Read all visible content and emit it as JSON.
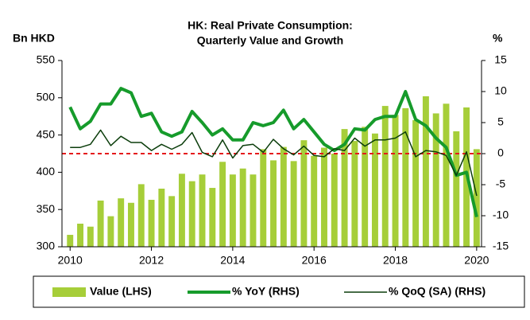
{
  "chart_data": {
    "type": "bar_line",
    "title": [
      "HK: Real Private Consumption:",
      "Quarterly Value and Growth"
    ],
    "ylabel": "Bn HKD",
    "y2label": "%",
    "x": [
      2010,
      2010.25,
      2010.5,
      2010.75,
      2011,
      2011.25,
      2011.5,
      2011.75,
      2012,
      2012.25,
      2012.5,
      2012.75,
      2013,
      2013.25,
      2013.5,
      2013.75,
      2014,
      2014.25,
      2014.5,
      2014.75,
      2015,
      2015.25,
      2015.5,
      2015.75,
      2016,
      2016.25,
      2016.5,
      2016.75,
      2017,
      2017.25,
      2017.5,
      2017.75,
      2018,
      2018.25,
      2018.5,
      2018.75,
      2019,
      2019.25,
      2019.5,
      2019.75,
      2020
    ],
    "series": [
      {
        "name": "Value (LHS)",
        "type": "bar",
        "color": "#a6ce39",
        "values": [
          316,
          331,
          327,
          362,
          341,
          365,
          359,
          384,
          363,
          378,
          368,
          398,
          388,
          397,
          379,
          414,
          397,
          405,
          397,
          431,
          416,
          434,
          415,
          443,
          422,
          433,
          425,
          458,
          442,
          461,
          452,
          489,
          477,
          486,
          470,
          502,
          479,
          492,
          455,
          487,
          431
        ]
      },
      {
        "name": "% YoY (RHS)",
        "type": "line",
        "axis": "y2",
        "color": "#169b2b",
        "width": 4,
        "values": [
          7.5,
          4,
          5.2,
          8,
          8,
          10.5,
          9.8,
          6,
          6.5,
          3.5,
          2.8,
          3.5,
          6.8,
          5,
          3,
          4,
          2.2,
          2.2,
          5,
          4.5,
          5,
          7,
          4,
          5.5,
          3.5,
          1.5,
          0.5,
          1.5,
          4,
          3.8,
          5.5,
          6,
          6,
          10,
          5.5,
          4.5,
          2.5,
          1,
          -3.5,
          -3,
          -10.2
        ]
      },
      {
        "name": "% QoQ (SA) (RHS)",
        "type": "line",
        "axis": "y2",
        "color": "#0b3d0b",
        "width": 1.5,
        "values": [
          1,
          1,
          1.5,
          3.8,
          1.3,
          2.8,
          1.8,
          1.8,
          0.5,
          1.5,
          0.7,
          1.5,
          3.4,
          0.2,
          -0.5,
          2.2,
          -0.7,
          1.3,
          1.5,
          0.2,
          2.3,
          0.8,
          -0.2,
          1.2,
          -0.3,
          -0.5,
          0.8,
          0.5,
          2.5,
          1.2,
          2.2,
          2.2,
          2.5,
          3.5,
          -0.5,
          0.5,
          0.3,
          -0.3,
          -3.5,
          0.3,
          -6.8
        ]
      }
    ],
    "xlim": [
      2009.8,
      2020.12
    ],
    "xticks": [
      2010,
      2012,
      2014,
      2016,
      2018,
      2020
    ],
    "ylim": [
      300,
      550
    ],
    "yticks": [
      300,
      350,
      400,
      450,
      500,
      550
    ],
    "y2lim": [
      -15,
      15
    ],
    "y2ticks": [
      -15,
      -10,
      -5,
      0,
      5,
      10,
      15
    ],
    "reference_line": {
      "value": 0,
      "axis": "y2",
      "color": "#e41a1c"
    },
    "legend": "bottom"
  }
}
